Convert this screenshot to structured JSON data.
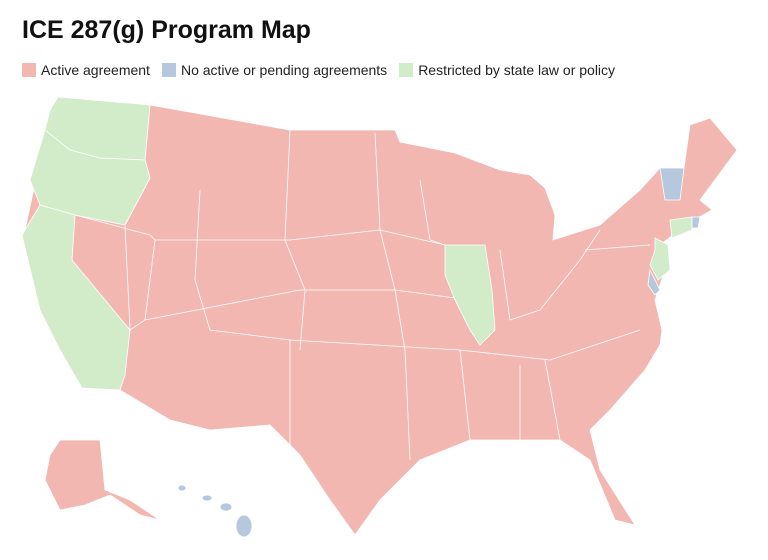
{
  "header": {
    "title": "ICE 287(g) Program Map"
  },
  "legend": [
    {
      "label": "Active agreement",
      "color": "#f2b7b1"
    },
    {
      "label": "No active or pending agreements",
      "color": "#b5c8de"
    },
    {
      "label": "Restricted by state law or policy",
      "color": "#d2ebc8"
    }
  ]
}
